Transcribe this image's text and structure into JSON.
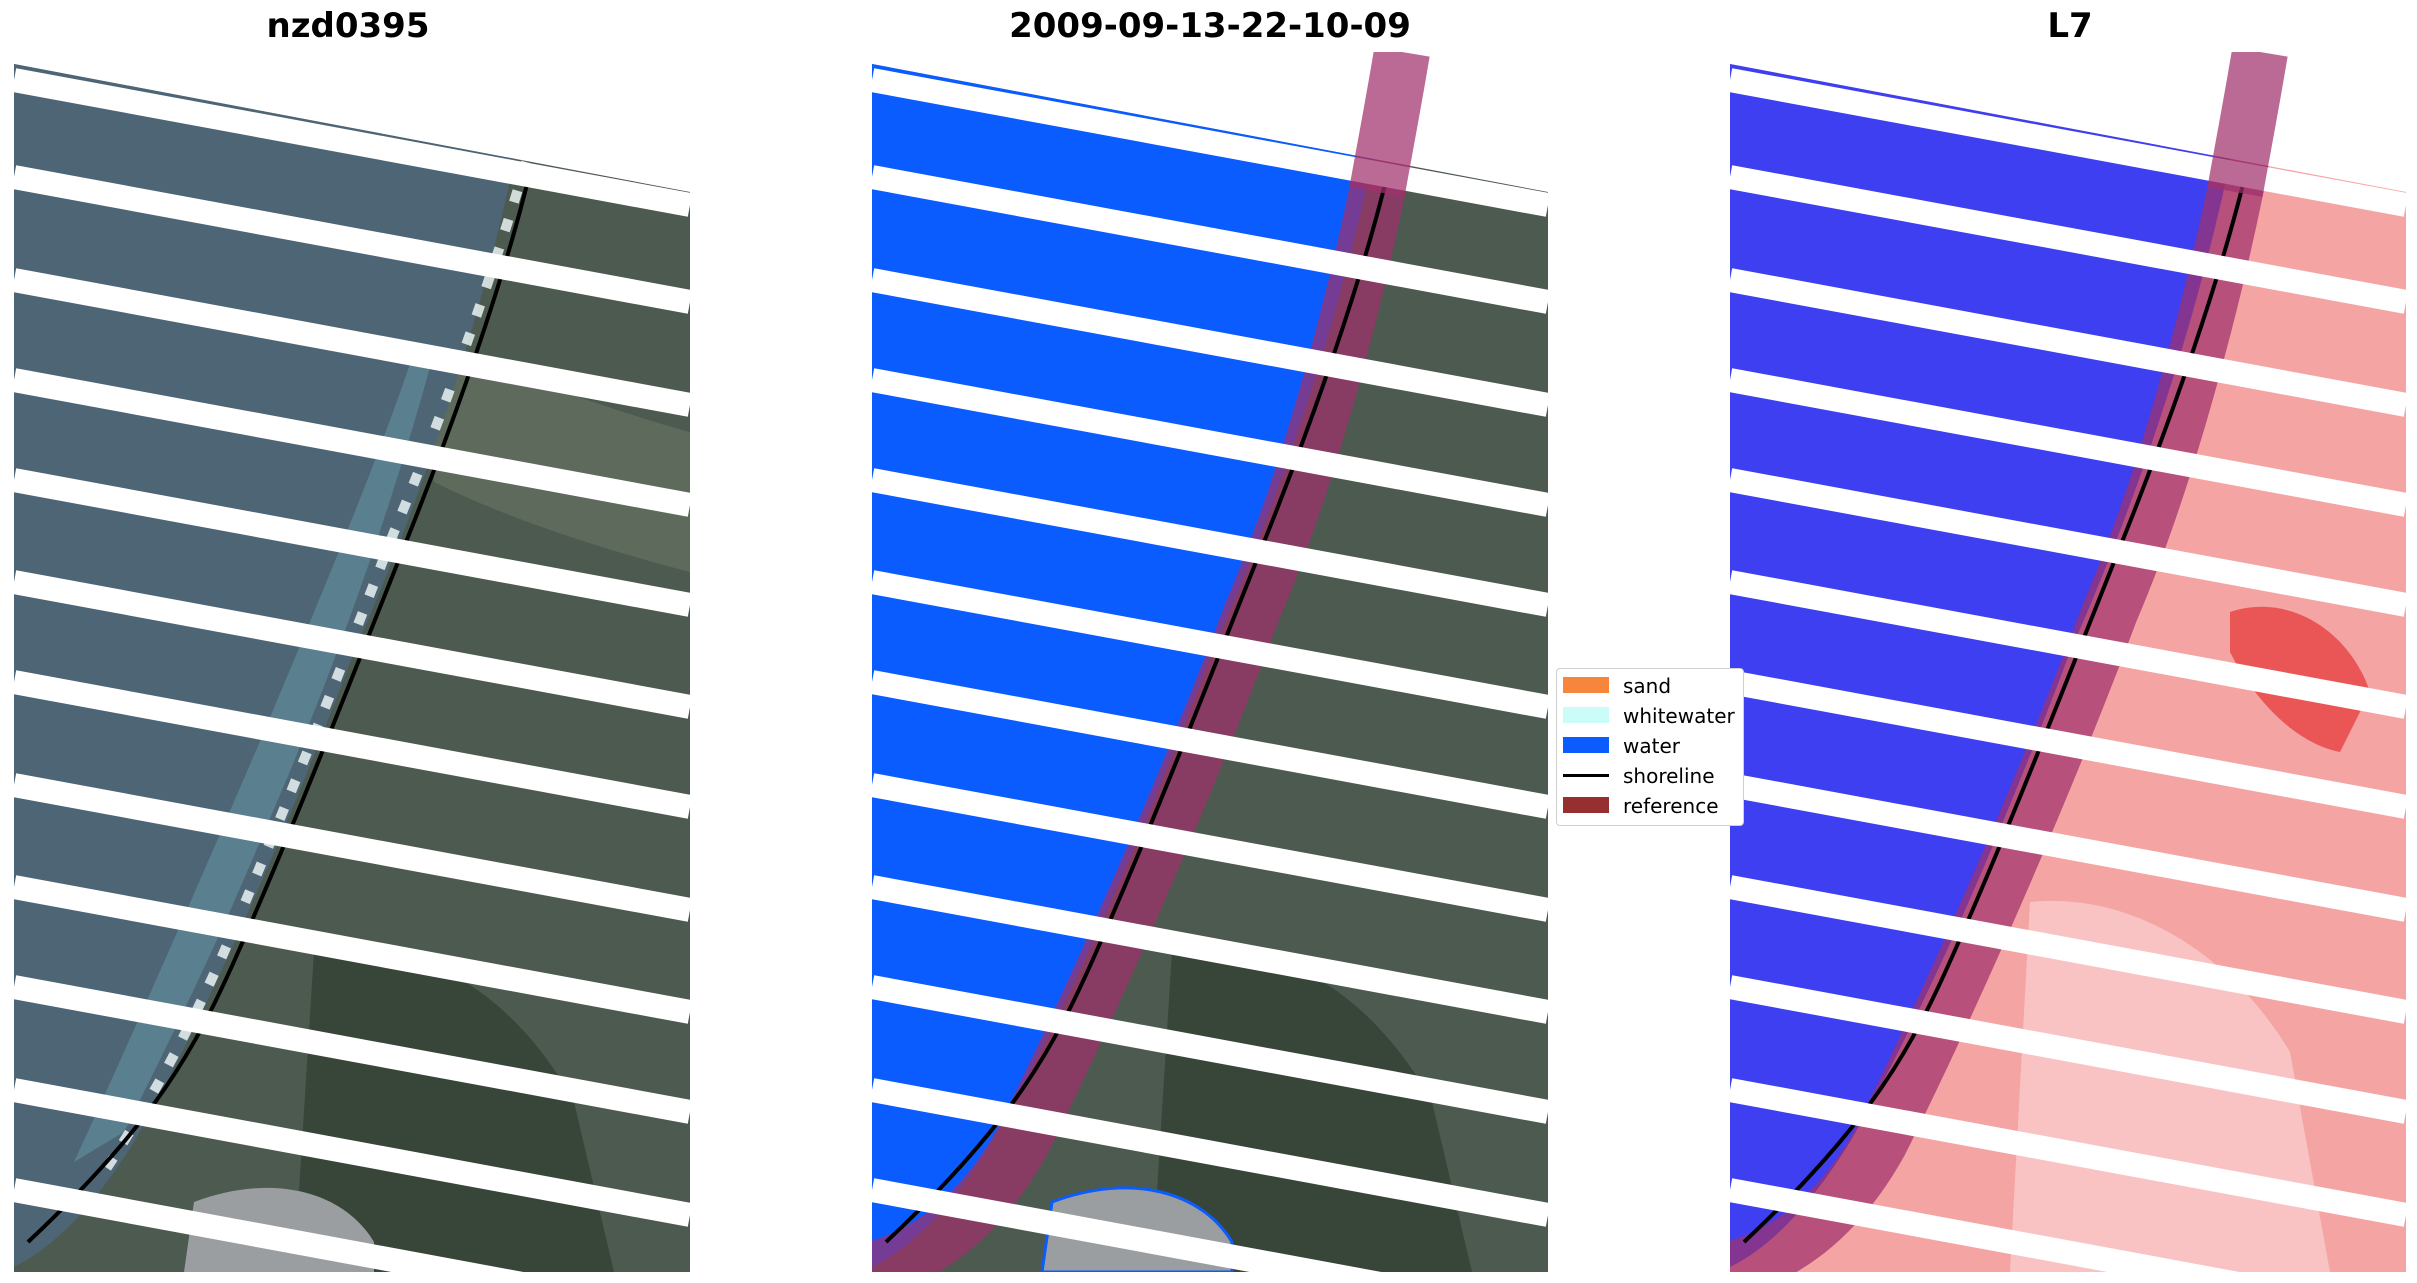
{
  "panels": [
    {
      "title": "nzd0395"
    },
    {
      "title": "2009-09-13-22-10-09"
    },
    {
      "title": "L7"
    }
  ],
  "legend": {
    "entries": [
      {
        "label": "sand",
        "color": "#f7853b"
      },
      {
        "label": "whitewater",
        "color": "#ccfcf8"
      },
      {
        "label": "water",
        "color": "#0a5cff"
      },
      {
        "label": "shoreline",
        "color": "#000000"
      },
      {
        "label": "reference",
        "color": "#963030"
      }
    ]
  },
  "colors": {
    "sea_rgb": "#4e6576",
    "land_rgb": "#4c5a4f",
    "water_class": "#0a5cff",
    "reference_buffer": "#a0306c",
    "mndwi_water": "#3d3ff0",
    "mndwi_land": "#f5a4a4"
  }
}
